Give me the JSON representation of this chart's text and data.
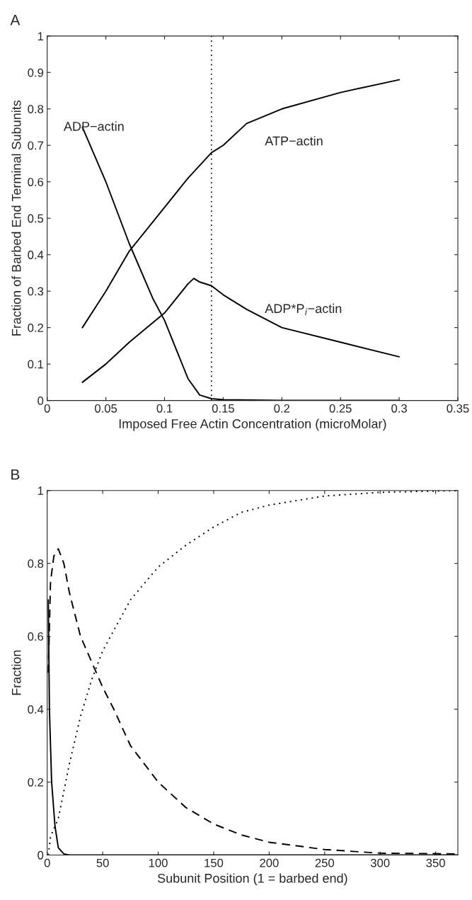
{
  "chart_data": [
    {
      "type": "line",
      "xlabel": "Imposed Free Actin Concentration (microMolar)",
      "ylabel": "Fraction of Barbed End Terminal Subunits",
      "xlim": [
        0,
        0.35
      ],
      "xticks": [
        0,
        0.05,
        0.1,
        0.15,
        0.2,
        0.25,
        0.3,
        0.35
      ],
      "ylim": [
        0,
        1
      ],
      "yticks": [
        0,
        0.1,
        0.2,
        0.3,
        0.4,
        0.5,
        0.6,
        0.7,
        0.8,
        0.9,
        1
      ],
      "grid": false,
      "legend": false,
      "marker": "none",
      "series": [
        {
          "color": "#000000",
          "line_style": "solid",
          "x": [
            0.03,
            0.05,
            0.07,
            0.1,
            0.12,
            0.14,
            0.15,
            0.17,
            0.2,
            0.25,
            0.3
          ],
          "values": [
            0.2,
            0.3,
            0.41,
            0.53,
            0.61,
            0.68,
            0.7,
            0.76,
            0.8,
            0.845,
            0.88
          ]
        },
        {
          "color": "#000000",
          "line_style": "solid",
          "x": [
            0.03,
            0.05,
            0.07,
            0.1,
            0.12,
            0.125,
            0.13,
            0.14,
            0.15,
            0.17,
            0.2,
            0.25,
            0.3
          ],
          "values": [
            0.05,
            0.1,
            0.16,
            0.24,
            0.32,
            0.335,
            0.325,
            0.315,
            0.29,
            0.25,
            0.2,
            0.16,
            0.12
          ]
        },
        {
          "color": "#000000",
          "line_style": "solid",
          "x": [
            0.03,
            0.05,
            0.07,
            0.09,
            0.1,
            0.11,
            0.12,
            0.13,
            0.14,
            0.15,
            0.2,
            0.3
          ],
          "values": [
            0.75,
            0.6,
            0.43,
            0.28,
            0.22,
            0.14,
            0.06,
            0.015,
            0.005,
            0.002,
            0,
            0
          ]
        }
      ],
      "ref_lines": [
        {
          "axis": "x",
          "value": 0.14,
          "color": "#000000",
          "line_style": "dotted"
        }
      ],
      "annotations": [
        "A",
        "ADP−actin",
        "ATP−actin",
        "ADP*P$_{i}$−actin"
      ]
    },
    {
      "type": "line",
      "xlabel": "Subunit Position (1 = barbed end)",
      "ylabel": "Fraction",
      "xlim": [
        0,
        370
      ],
      "xticks": [
        0,
        50,
        100,
        150,
        200,
        250,
        300,
        350
      ],
      "ylim": [
        0,
        1
      ],
      "yticks": [
        0,
        0.2,
        0.4,
        0.6,
        0.8,
        1
      ],
      "grid": false,
      "legend": false,
      "marker": "none",
      "series": [
        {
          "color": "#000000",
          "line_style": "solid",
          "x": [
            1,
            2,
            4,
            7,
            10,
            15,
            20,
            370
          ],
          "values": [
            0.7,
            0.4,
            0.2,
            0.08,
            0.02,
            0.003,
            0,
            0
          ]
        },
        {
          "color": "#000000",
          "line_style": "dashed",
          "x": [
            1,
            3,
            6,
            10,
            15,
            20,
            30,
            40,
            50,
            60,
            75,
            100,
            125,
            150,
            175,
            200,
            250,
            300,
            370
          ],
          "values": [
            0.5,
            0.75,
            0.82,
            0.84,
            0.8,
            0.72,
            0.6,
            0.53,
            0.46,
            0.4,
            0.3,
            0.2,
            0.13,
            0.085,
            0.055,
            0.035,
            0.015,
            0.005,
            0.003
          ]
        },
        {
          "color": "#000000",
          "line_style": "dotted",
          "x": [
            1,
            3,
            10,
            20,
            30,
            40,
            50,
            75,
            100,
            125,
            150,
            175,
            200,
            250,
            300,
            370
          ],
          "values": [
            0.0,
            0.05,
            0.1,
            0.25,
            0.38,
            0.48,
            0.56,
            0.7,
            0.79,
            0.85,
            0.9,
            0.94,
            0.96,
            0.985,
            0.995,
            1.0
          ]
        }
      ],
      "annotations": [
        "B"
      ]
    }
  ]
}
